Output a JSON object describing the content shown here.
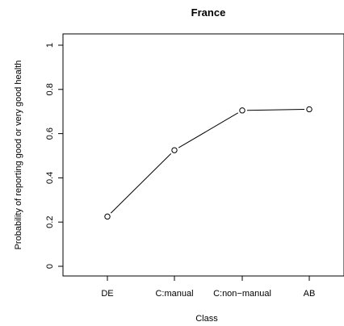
{
  "chart_data": {
    "type": "line",
    "title": "France",
    "xlabel": "Class",
    "ylabel": "Probability of reporting good or very good health",
    "categories": [
      "DE",
      "C:manual",
      "C:non−manual",
      "AB"
    ],
    "values": [
      0.225,
      0.525,
      0.705,
      0.71
    ],
    "ylim": [
      0,
      1
    ],
    "yticks": [
      0,
      0.2,
      0.4,
      0.6,
      0.8,
      1
    ],
    "ytick_labels": [
      "0",
      "0.2",
      "0.4",
      "0.6",
      "0.8",
      "1"
    ],
    "grid": false,
    "marker": "open-circle",
    "line_color": "#000000"
  }
}
